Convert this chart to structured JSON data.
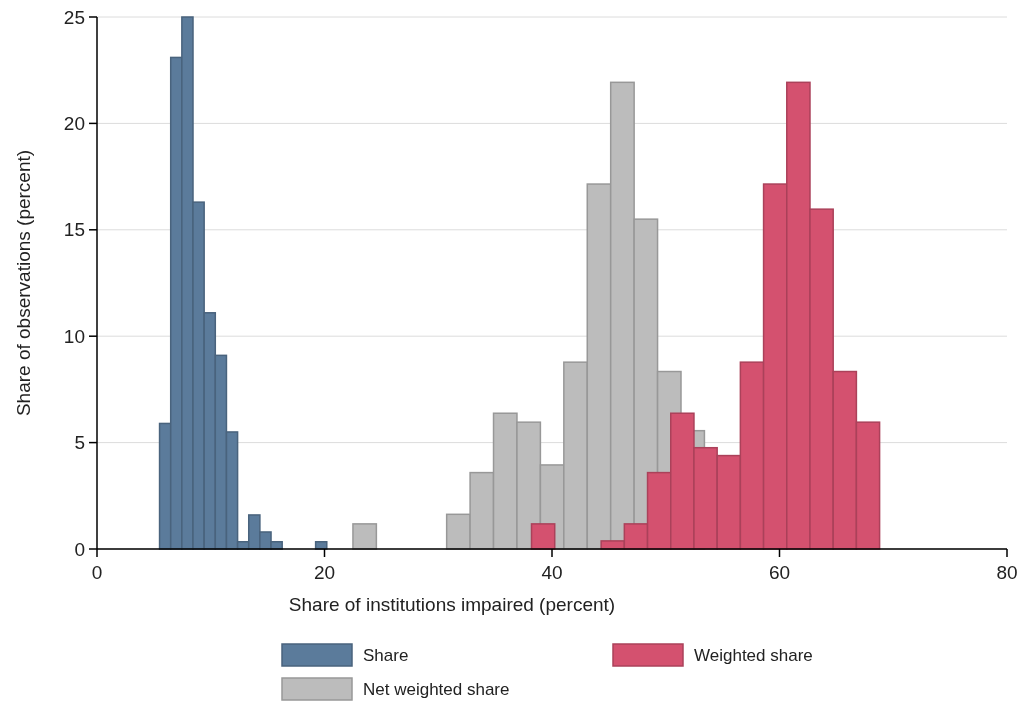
{
  "chart_data": {
    "type": "bar",
    "xlabel": "Share of institutions impaired (percent)",
    "ylabel": "Share of observations (percent)",
    "xlim": [
      0,
      80
    ],
    "xticks": [
      0,
      20,
      40,
      60,
      80
    ],
    "ylim": [
      0,
      25
    ],
    "yticks": [
      0,
      5,
      10,
      15,
      20,
      25
    ],
    "grid": "y",
    "legend": "bottom",
    "series": [
      {
        "name": "Share",
        "color": "#5b7b9b",
        "x": [
          5.99,
          6.97,
          7.95,
          8.93,
          9.91,
          10.89,
          11.87,
          12.85,
          13.83,
          14.81,
          15.79,
          19.71
        ],
        "values": [
          5.9,
          23.1,
          25,
          16.3,
          11.1,
          9.1,
          5.5,
          0.34,
          1.6,
          0.8,
          0.34,
          0.34
        ]
      },
      {
        "name": "Net weighted share",
        "color": "#bcbcbc",
        "x": [
          23.53,
          31.77,
          33.83,
          35.89,
          37.95,
          40.01,
          42.07,
          44.13,
          46.19,
          48.25,
          50.31,
          52.37
        ],
        "values": [
          1.18,
          1.63,
          3.59,
          6.38,
          5.96,
          3.95,
          8.78,
          17.15,
          21.93,
          15.5,
          8.34,
          5.56
        ]
      },
      {
        "name": "Weighted share",
        "color": "#d4516f",
        "x": [
          39.22,
          45.34,
          47.38,
          49.42,
          51.46,
          53.5,
          55.54,
          57.58,
          59.62,
          61.66,
          63.7,
          65.74,
          67.78
        ],
        "values": [
          1.18,
          0.38,
          1.18,
          3.59,
          6.38,
          4.76,
          4.39,
          8.78,
          17.15,
          21.93,
          15.97,
          8.34,
          5.96
        ]
      }
    ]
  }
}
